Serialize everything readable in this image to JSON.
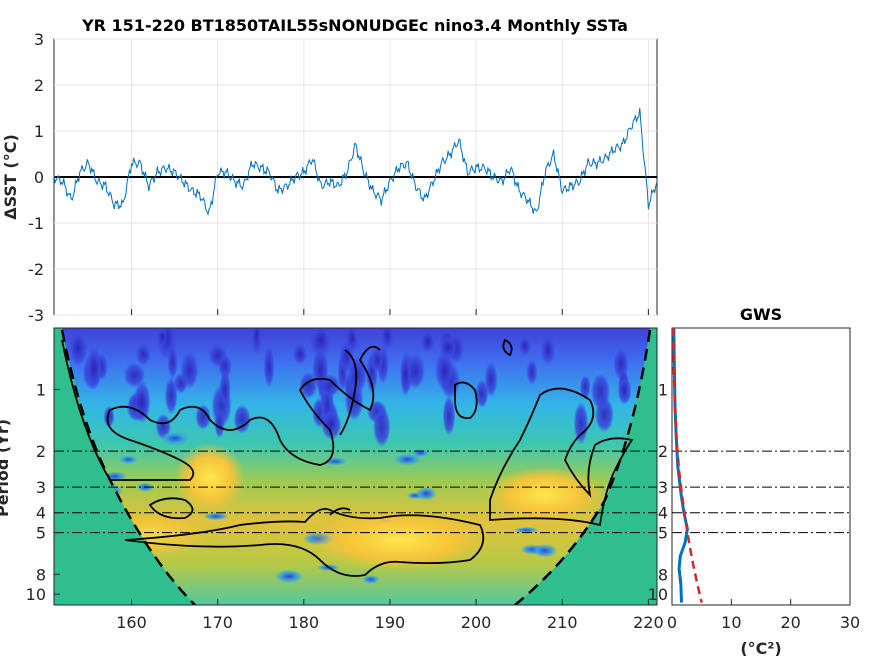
{
  "chart_data": [
    {
      "type": "line",
      "title": "YR 151-220 BT1850TAIL55sNONUDGEc nino3.4 Monthly SSTa",
      "ylabel": "ΔSST (°C)",
      "xlim": [
        151,
        221
      ],
      "ylim": [
        -3,
        3
      ],
      "yticks": [
        "3",
        "2",
        "1",
        "0",
        "-1",
        "-2",
        "-3"
      ],
      "xticks": [
        160,
        170,
        180,
        190,
        200,
        210,
        220
      ],
      "grid": true,
      "colors": {
        "series": "#0072bd",
        "zero_line": "#000000"
      },
      "series": [
        {
          "x": [
            151,
            152,
            153,
            154,
            155,
            156,
            157,
            158,
            159,
            160,
            161,
            162,
            163,
            164,
            165,
            166,
            167,
            168,
            169,
            170,
            171,
            172,
            173,
            174,
            175,
            176,
            177,
            178,
            179,
            180,
            181,
            182,
            183,
            184,
            185,
            186,
            187,
            188,
            189,
            190,
            191,
            192,
            193,
            194,
            195,
            196,
            197,
            198,
            199,
            200,
            201,
            202,
            203,
            204,
            205,
            206,
            207,
            208,
            209,
            210,
            211,
            212,
            213,
            214,
            215,
            216,
            217,
            218,
            219,
            220,
            221
          ],
          "values": [
            0.0,
            -0.1,
            -0.5,
            0.1,
            0.3,
            -0.1,
            -0.2,
            -0.6,
            -0.6,
            0.3,
            0.3,
            -0.2,
            0.1,
            0.2,
            0.1,
            -0.1,
            -0.3,
            -0.4,
            -0.8,
            0.1,
            0.1,
            -0.1,
            -0.2,
            0.3,
            0.2,
            0.1,
            -0.3,
            -0.2,
            0.0,
            0.1,
            0.4,
            -0.2,
            -0.1,
            -0.2,
            0.1,
            0.7,
            0.1,
            -0.3,
            -0.5,
            -0.1,
            0.2,
            0.3,
            -0.2,
            -0.5,
            -0.1,
            0.3,
            0.5,
            0.8,
            0.1,
            0.2,
            0.2,
            0.0,
            -0.1,
            0.2,
            -0.3,
            -0.5,
            -0.8,
            0.1,
            0.5,
            -0.3,
            -0.2,
            -0.1,
            0.3,
            0.3,
            0.4,
            0.6,
            0.7,
            1.1,
            1.4,
            -0.6,
            -0.1
          ]
        }
      ]
    },
    {
      "type": "heatmap",
      "ylabel": "Period (Yr)",
      "xlim": [
        151,
        221
      ],
      "y_scale": "log",
      "yticks": [
        "1",
        "2",
        "3",
        "4",
        "5",
        "8",
        "10"
      ],
      "xticks": [
        160,
        170,
        180,
        190,
        200,
        210,
        220
      ],
      "reference_periods": [
        2,
        3,
        4,
        5
      ],
      "colors": {
        "low": "#3b2fd8",
        "mid": "#2ec3a3",
        "high": "#f5c030",
        "cone": "#2fbf8e"
      }
    },
    {
      "type": "line",
      "title": "GWS",
      "xlabel": "(°C²)",
      "xlim": [
        0,
        30
      ],
      "xticks": [
        0,
        10,
        20,
        30
      ],
      "y_scale": "log",
      "reference_periods": [
        2,
        3,
        4,
        5
      ],
      "series": [
        {
          "color": "#0072bd",
          "x": [
            0.3,
            0.4,
            0.5,
            0.7,
            1.0,
            1.5,
            2.0,
            2.6,
            2.2,
            1.4,
            1.2,
            1.5,
            1.6
          ],
          "periods": [
            0.5,
            0.8,
            1.2,
            1.7,
            2.4,
            3.2,
            4.0,
            4.8,
            5.6,
            6.5,
            7.5,
            9.0,
            11.0
          ]
        },
        {
          "color": "#d62728",
          "x": [
            0.2,
            0.3,
            0.5,
            0.8,
            1.2,
            1.7,
            2.2,
            2.7,
            3.2,
            3.7,
            4.3,
            5.0
          ],
          "periods": [
            0.5,
            0.8,
            1.2,
            1.8,
            2.5,
            3.3,
            4.2,
            5.2,
            6.3,
            7.5,
            9.0,
            11.0
          ]
        }
      ]
    }
  ],
  "labels": {
    "title": "YR 151-220 BT1850TAIL55sNONUDGEc nino3.4 Monthly SSTa",
    "ylabel_top": "ΔSST (°C)",
    "ylabel_bottom": "Period (Yr)",
    "gws_title": "GWS",
    "gws_xlabel": "(°C²)"
  }
}
